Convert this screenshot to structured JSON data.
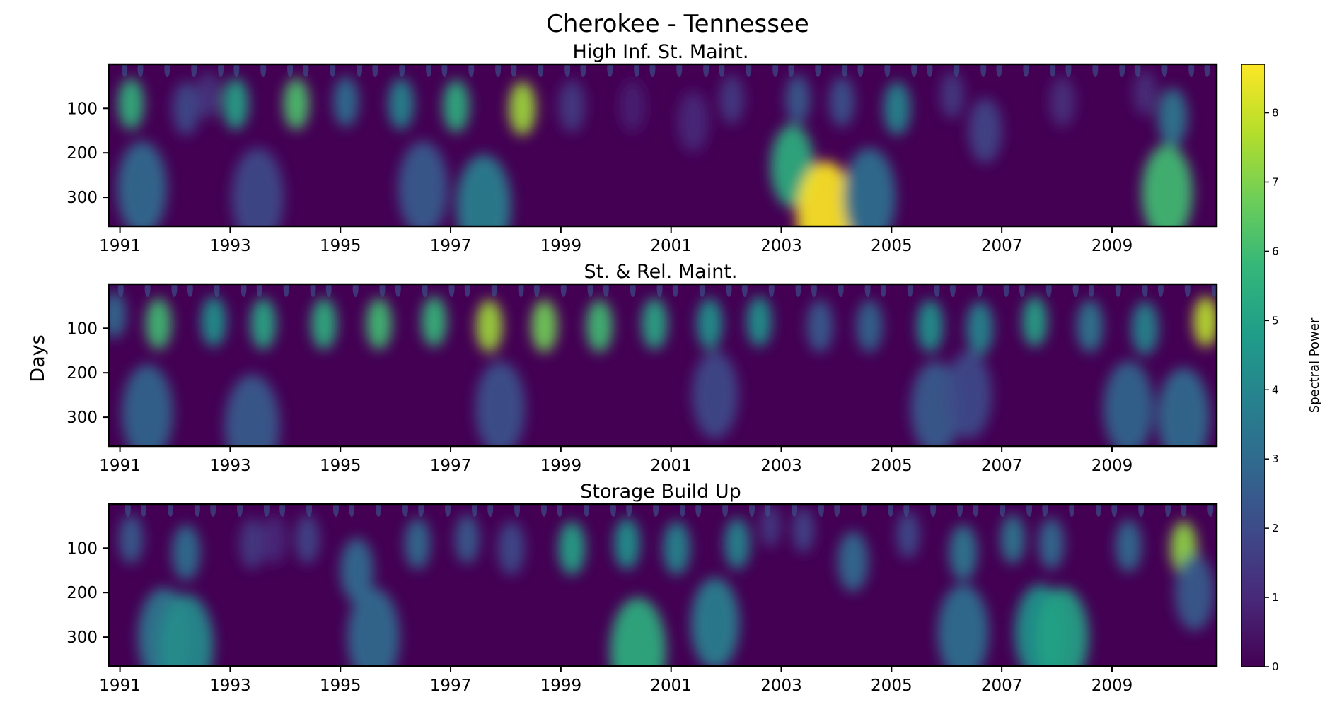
{
  "chart_data": {
    "type": "heatmap",
    "title": "Cherokee - Tennessee",
    "ylabel": "Days",
    "colorbar": {
      "label": "Spectral Power",
      "range": [
        0,
        8.7
      ],
      "ticks": [
        "0",
        "1",
        "2",
        "3",
        "4",
        "5",
        "6",
        "7",
        "8"
      ],
      "colormap": "viridis",
      "colors": [
        "#440154",
        "#482878",
        "#3e4989",
        "#31688e",
        "#26828e",
        "#1f9e89",
        "#35b779",
        "#6ece58",
        "#b5de2b",
        "#fde725"
      ]
    },
    "x_range": [
      1990.8,
      2010.9
    ],
    "y_range": [
      1,
      365
    ],
    "y_inverted": true,
    "xticks": [
      "1991",
      "1993",
      "1995",
      "1997",
      "1999",
      "2001",
      "2003",
      "2005",
      "2007",
      "2009"
    ],
    "yticks": [
      "100",
      "200",
      "300"
    ],
    "panels": [
      {
        "title": "High Inf. St. Maint.",
        "blobs": [
          {
            "year": 1991.2,
            "days": 90,
            "power": 5.6
          },
          {
            "year": 1992.2,
            "days": 100,
            "power": 2.0
          },
          {
            "year": 1992.6,
            "days": 70,
            "power": 1.3
          },
          {
            "year": 1993.1,
            "days": 90,
            "power": 5.0
          },
          {
            "year": 1994.2,
            "days": 90,
            "power": 6.2
          },
          {
            "year": 1995.1,
            "days": 85,
            "power": 3.2
          },
          {
            "year": 1996.1,
            "days": 90,
            "power": 4.0
          },
          {
            "year": 1997.1,
            "days": 95,
            "power": 5.5
          },
          {
            "year": 1998.3,
            "days": 100,
            "power": 7.4
          },
          {
            "year": 1999.2,
            "days": 95,
            "power": 1.5
          },
          {
            "year": 2000.3,
            "days": 95,
            "power": 0.8
          },
          {
            "year": 2001.4,
            "days": 130,
            "power": 1.0
          },
          {
            "year": 2002.1,
            "days": 80,
            "power": 1.5
          },
          {
            "year": 2003.3,
            "days": 80,
            "power": 2.5
          },
          {
            "year": 2004.1,
            "days": 85,
            "power": 2.2
          },
          {
            "year": 2005.1,
            "days": 100,
            "power": 4.0
          },
          {
            "year": 2006.1,
            "days": 70,
            "power": 1.5
          },
          {
            "year": 2006.7,
            "days": 150,
            "power": 1.8
          },
          {
            "year": 2008.1,
            "days": 85,
            "power": 1.2
          },
          {
            "year": 2009.6,
            "days": 65,
            "power": 1.2
          },
          {
            "year": 2010.1,
            "days": 120,
            "power": 3.5
          },
          {
            "year": 1991.4,
            "days": 280,
            "power": 3.0
          },
          {
            "year": 1993.5,
            "days": 300,
            "power": 2.0
          },
          {
            "year": 1996.5,
            "days": 280,
            "power": 2.5
          },
          {
            "year": 1997.6,
            "days": 320,
            "power": 3.8
          },
          {
            "year": 2003.2,
            "days": 230,
            "power": 5.5
          },
          {
            "year": 2003.8,
            "days": 340,
            "power": 8.7
          },
          {
            "year": 2004.6,
            "days": 300,
            "power": 3.2
          },
          {
            "year": 2010.0,
            "days": 290,
            "power": 6.0
          }
        ]
      },
      {
        "title": "St. & Rel. Maint.",
        "blobs": [
          {
            "year": 1990.9,
            "days": 70,
            "power": 3.0
          },
          {
            "year": 1991.7,
            "days": 90,
            "power": 6.0
          },
          {
            "year": 1992.7,
            "days": 85,
            "power": 4.5
          },
          {
            "year": 1993.6,
            "days": 90,
            "power": 5.2
          },
          {
            "year": 1994.7,
            "days": 90,
            "power": 5.5
          },
          {
            "year": 1995.7,
            "days": 90,
            "power": 6.0
          },
          {
            "year": 1996.7,
            "days": 85,
            "power": 5.8
          },
          {
            "year": 1997.7,
            "days": 95,
            "power": 7.4
          },
          {
            "year": 1998.7,
            "days": 95,
            "power": 6.8
          },
          {
            "year": 1999.7,
            "days": 95,
            "power": 6.0
          },
          {
            "year": 2000.7,
            "days": 90,
            "power": 5.2
          },
          {
            "year": 2001.7,
            "days": 90,
            "power": 4.5
          },
          {
            "year": 2002.6,
            "days": 85,
            "power": 4.5
          },
          {
            "year": 2003.7,
            "days": 95,
            "power": 2.5
          },
          {
            "year": 2004.6,
            "days": 95,
            "power": 2.8
          },
          {
            "year": 2005.7,
            "days": 95,
            "power": 4.5
          },
          {
            "year": 2006.6,
            "days": 100,
            "power": 4.0
          },
          {
            "year": 2007.6,
            "days": 85,
            "power": 5.0
          },
          {
            "year": 2008.6,
            "days": 95,
            "power": 3.5
          },
          {
            "year": 2009.6,
            "days": 100,
            "power": 4.0
          },
          {
            "year": 2010.7,
            "days": 85,
            "power": 7.8
          },
          {
            "year": 1991.5,
            "days": 290,
            "power": 2.8
          },
          {
            "year": 1993.4,
            "days": 320,
            "power": 2.5
          },
          {
            "year": 1997.9,
            "days": 280,
            "power": 2.2
          },
          {
            "year": 2001.8,
            "days": 250,
            "power": 2.0
          },
          {
            "year": 2005.8,
            "days": 280,
            "power": 2.5
          },
          {
            "year": 2006.4,
            "days": 250,
            "power": 2.0
          },
          {
            "year": 2009.3,
            "days": 280,
            "power": 2.8
          },
          {
            "year": 2010.3,
            "days": 300,
            "power": 3.0
          }
        ]
      },
      {
        "title": "Storage Build Up",
        "blobs": [
          {
            "year": 1991.2,
            "days": 80,
            "power": 2.5
          },
          {
            "year": 1992.2,
            "days": 110,
            "power": 3.2
          },
          {
            "year": 1993.4,
            "days": 90,
            "power": 1.5
          },
          {
            "year": 1993.8,
            "days": 80,
            "power": 1.0
          },
          {
            "year": 1994.4,
            "days": 80,
            "power": 1.8
          },
          {
            "year": 1995.3,
            "days": 150,
            "power": 3.0
          },
          {
            "year": 1996.4,
            "days": 90,
            "power": 3.0
          },
          {
            "year": 1997.3,
            "days": 80,
            "power": 2.5
          },
          {
            "year": 1998.1,
            "days": 100,
            "power": 2.0
          },
          {
            "year": 1999.2,
            "days": 100,
            "power": 5.0
          },
          {
            "year": 2000.2,
            "days": 90,
            "power": 4.5
          },
          {
            "year": 2001.1,
            "days": 100,
            "power": 4.0
          },
          {
            "year": 2002.2,
            "days": 90,
            "power": 4.0
          },
          {
            "year": 2002.8,
            "days": 50,
            "power": 1.5
          },
          {
            "year": 2003.4,
            "days": 60,
            "power": 1.8
          },
          {
            "year": 2004.3,
            "days": 130,
            "power": 3.0
          },
          {
            "year": 2005.3,
            "days": 70,
            "power": 2.0
          },
          {
            "year": 2006.3,
            "days": 110,
            "power": 3.5
          },
          {
            "year": 2007.2,
            "days": 80,
            "power": 3.5
          },
          {
            "year": 2007.9,
            "days": 90,
            "power": 3.0
          },
          {
            "year": 2009.3,
            "days": 95,
            "power": 3.0
          },
          {
            "year": 2010.3,
            "days": 100,
            "power": 7.2
          },
          {
            "year": 1991.8,
            "days": 300,
            "power": 3.5
          },
          {
            "year": 1992.2,
            "days": 320,
            "power": 4.2
          },
          {
            "year": 1995.6,
            "days": 300,
            "power": 3.0
          },
          {
            "year": 2000.4,
            "days": 330,
            "power": 5.5
          },
          {
            "year": 2001.8,
            "days": 270,
            "power": 3.8
          },
          {
            "year": 2006.3,
            "days": 290,
            "power": 3.2
          },
          {
            "year": 2007.7,
            "days": 290,
            "power": 4.5
          },
          {
            "year": 2008.1,
            "days": 300,
            "power": 5.0
          },
          {
            "year": 2010.5,
            "days": 200,
            "power": 2.5
          }
        ]
      }
    ]
  }
}
